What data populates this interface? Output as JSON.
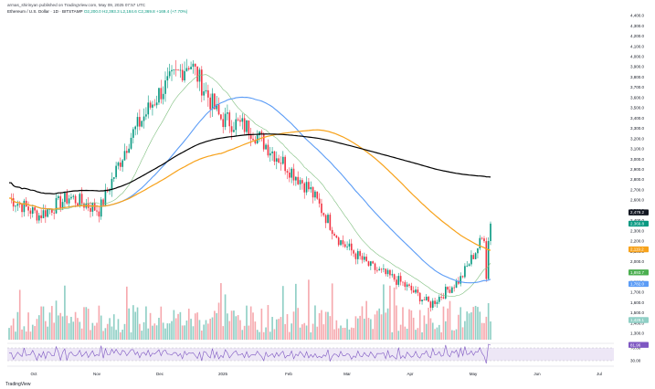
{
  "header": {
    "line1": "armas_shirinyan published on TradingView.com, May 09, 2025 07:57 UTC",
    "symbol": "Ethereum / U.S. Dollar · 1D · BITSTAMP",
    "ohlc": "O2,200.0 H2,393.3 L2,184.6 C2,369.8",
    "change": "+169.4 (+7.70%)"
  },
  "brand": "TradingView",
  "colors": {
    "up": "#089981",
    "down": "#f23645",
    "up_vol": "#8fcfc5",
    "down_vol": "#f6a9ae",
    "ma50": "#5b9cf6",
    "ma100": "#f7a21b",
    "ma200": "#000000",
    "ma20": "#7fbf7f",
    "rsi": "#7e57c2"
  },
  "chart_data": {
    "type": "candlestick",
    "symbol": "ETHUSD",
    "interval": "1D",
    "ylim": [
      1300,
      4500
    ],
    "y_ticks": [
      "4,400.0",
      "4,300.0",
      "4,200.0",
      "4,100.0",
      "4,000.0",
      "3,900.0",
      "3,800.0",
      "3,700.0",
      "3,600.0",
      "3,500.0",
      "3,400.0",
      "3,300.0",
      "3,200.0",
      "3,100.0",
      "3,000.0",
      "2,900.0",
      "2,800.0",
      "2,700.0",
      "2,600.0",
      "2,500.0",
      "2,400.0",
      "2,300.0",
      "2,200.0",
      "2,100.0",
      "2,000.0",
      "1,900.0",
      "1,800.0",
      "1,700.0",
      "1,600.0",
      "1,500.0",
      "1,400.0",
      "1,300.0"
    ],
    "x_ticks": [
      "Oct",
      "Nov",
      "Dec",
      "2025",
      "Feb",
      "Mar",
      "Apr",
      "May",
      "Jun",
      "Jul"
    ],
    "rsi_ticks": [
      "70.00",
      "30.00"
    ],
    "rsi_value": "81.96",
    "price_labels": [
      {
        "value": 2479.2,
        "text": "2,479.2",
        "color": "#131722"
      },
      {
        "value": 2369.8,
        "text": "2,369.8",
        "color": "#089981"
      },
      {
        "value": 2119.2,
        "text": "2,119.2",
        "color": "#f7a21b"
      },
      {
        "value": 1893.7,
        "text": "1,893.7",
        "color": "#4caf50"
      },
      {
        "value": 1782.0,
        "text": "1,782.0",
        "color": "#5b9cf6"
      },
      {
        "value": 1429.1,
        "text": "1,429.1",
        "color": "#8fcfc5"
      }
    ],
    "close_series": [
      {
        "month": "Sep-end",
        "close": 2620
      },
      {
        "month": "Oct-start",
        "close": 2450
      },
      {
        "month": "Oct-mid",
        "close": 2630
      },
      {
        "month": "Nov-start",
        "close": 2500
      },
      {
        "month": "Nov-mid",
        "close": 3200
      },
      {
        "month": "Dec-start",
        "close": 3650
      },
      {
        "month": "Dec-mid",
        "close": 3950
      },
      {
        "month": "2025-start",
        "close": 3400
      },
      {
        "month": "Jan-mid",
        "close": 3300
      },
      {
        "month": "Feb-start",
        "close": 3000
      },
      {
        "month": "Feb-mid",
        "close": 2700
      },
      {
        "month": "Mar-start",
        "close": 2200
      },
      {
        "month": "Mar-mid",
        "close": 1950
      },
      {
        "month": "Apr-start",
        "close": 1800
      },
      {
        "month": "Apr-mid",
        "close": 1580
      },
      {
        "month": "May-start",
        "close": 1830
      },
      {
        "month": "May-09",
        "close": 2369.8
      }
    ],
    "grid": false
  }
}
